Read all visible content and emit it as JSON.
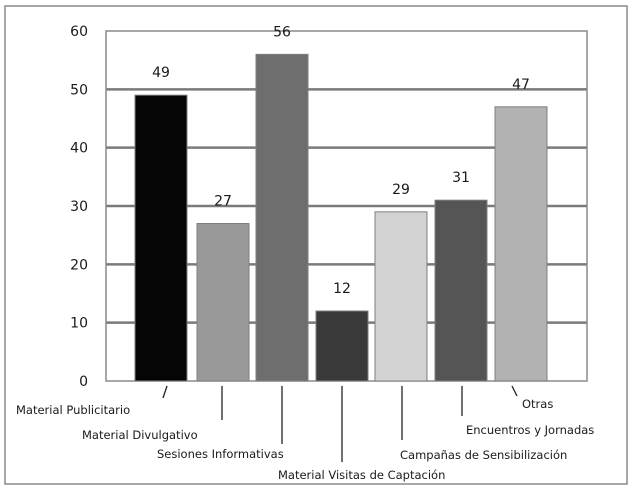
{
  "chart_data": {
    "type": "bar",
    "title": "",
    "xlabel": "",
    "ylabel": "",
    "ylim": [
      0,
      60
    ],
    "yticks": [
      0,
      10,
      20,
      30,
      40,
      50,
      60
    ],
    "grid": true,
    "legend": "none",
    "categories": [
      "Material Publicitario",
      "Material Divulgativo",
      "Sesiones Informativas",
      "Material Visitas de Captación",
      "Campañas de Sensibilización",
      "Encuentros y Jornadas",
      "Otras"
    ],
    "values": [
      49,
      27,
      56,
      12,
      29,
      31,
      47
    ],
    "colors": [
      "#050505",
      "#999999",
      "#6e6e6e",
      "#3a3a3a",
      "#d2d2d2",
      "#555555",
      "#b2b2b2"
    ],
    "frame_color": "#8a8a8a",
    "grid_color": "#7a7a7a"
  }
}
